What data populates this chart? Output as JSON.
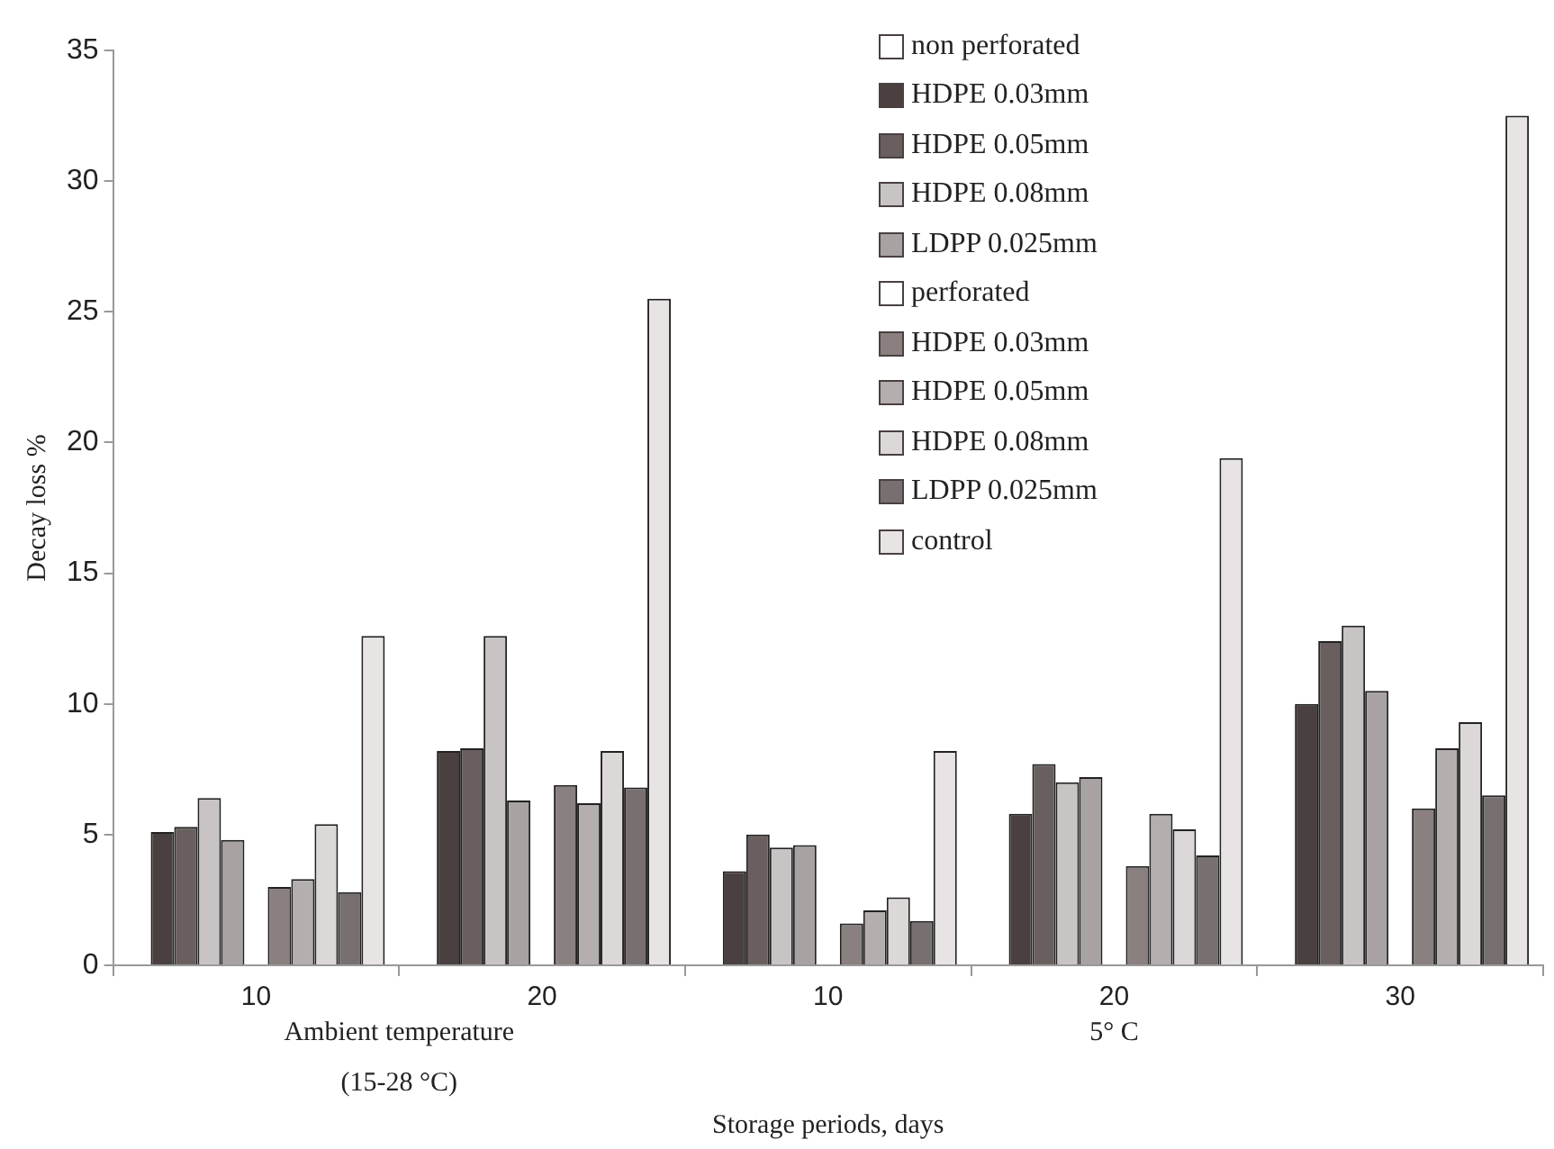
{
  "chart_data": {
    "type": "bar",
    "xlabel": "Storage periods, days",
    "ylabel": "Decay loss %",
    "categories": [
      "10",
      "20",
      "10",
      "20",
      "30"
    ],
    "annotations": [
      "Ambient temperature (15-28 °C)",
      "5° C"
    ],
    "ylim": [
      0,
      35
    ],
    "yticks": [
      0,
      5,
      10,
      15,
      20,
      25,
      30,
      35
    ],
    "grid": false,
    "legend": "top right",
    "series": [
      {
        "name": "non perforated",
        "color": "#ffffff",
        "values": [
          null,
          null,
          null,
          null,
          null
        ]
      },
      {
        "name": "HDPE 0.03mm",
        "color": "#4a4040",
        "values": [
          5.1,
          8.2,
          3.6,
          5.8,
          10.0
        ]
      },
      {
        "name": "HDPE 0.05mm",
        "color": "#6a5f5f",
        "values": [
          5.3,
          8.3,
          5.0,
          7.7,
          12.4
        ]
      },
      {
        "name": "HDPE 0.08mm",
        "color": "#c8c4c4",
        "values": [
          6.4,
          12.6,
          4.5,
          7.0,
          13.0
        ]
      },
      {
        "name": "LDPP 0.025mm",
        "color": "#a8a2a2",
        "values": [
          4.8,
          6.3,
          4.6,
          7.2,
          10.5
        ]
      },
      {
        "name": "perforated",
        "color": "#fefefe",
        "values": [
          null,
          null,
          null,
          null,
          null
        ]
      },
      {
        "name": "HDPE 0.03mm",
        "color": "#8a8080",
        "values": [
          3.0,
          6.9,
          1.6,
          3.8,
          6.0
        ]
      },
      {
        "name": "HDPE 0.05mm",
        "color": "#b4aeae",
        "values": [
          3.3,
          6.2,
          2.1,
          5.8,
          8.3
        ]
      },
      {
        "name": "HDPE 0.08mm",
        "color": "#dcd8d8",
        "values": [
          5.4,
          8.2,
          2.6,
          5.2,
          9.3
        ]
      },
      {
        "name": "LDPP 0.025mm",
        "color": "#787070",
        "values": [
          2.8,
          6.8,
          1.7,
          4.2,
          6.5
        ]
      },
      {
        "name": "control",
        "color": "#e8e4e4",
        "values": [
          12.6,
          25.5,
          8.2,
          19.4,
          32.5
        ]
      }
    ]
  }
}
